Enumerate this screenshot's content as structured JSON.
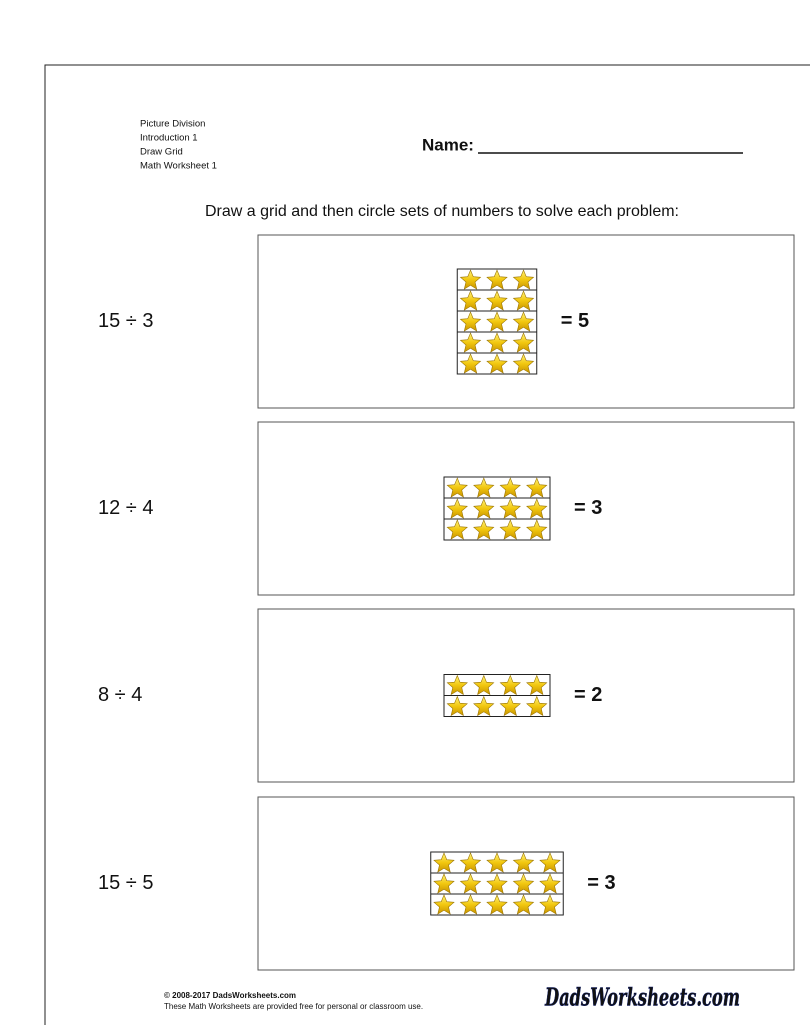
{
  "header": {
    "lines": [
      "Picture Division",
      "Introduction 1",
      "Draw Grid",
      "Math Worksheet 1"
    ],
    "name_label": "Name:"
  },
  "instruction": "Draw a grid and then circle sets of numbers to solve each problem:",
  "problems": [
    {
      "expression": "15 ÷ 3",
      "answer": "= 5",
      "grid": {
        "rows": 5,
        "columns": 3
      }
    },
    {
      "expression": "12 ÷ 4",
      "answer": "= 3",
      "grid": {
        "rows": 3,
        "columns": 4
      }
    },
    {
      "expression": "8 ÷ 4",
      "answer": "= 2",
      "grid": {
        "rows": 2,
        "columns": 4
      }
    },
    {
      "expression": "15 ÷ 5",
      "answer": "= 3",
      "grid": {
        "rows": 3,
        "columns": 5
      }
    }
  ],
  "footer": {
    "copyright": "© 2008-2017 DadsWorksheets.com",
    "note": "These Math Worksheets are provided free for personal or classroom use.",
    "logo": "DadsWorksheets.com"
  }
}
